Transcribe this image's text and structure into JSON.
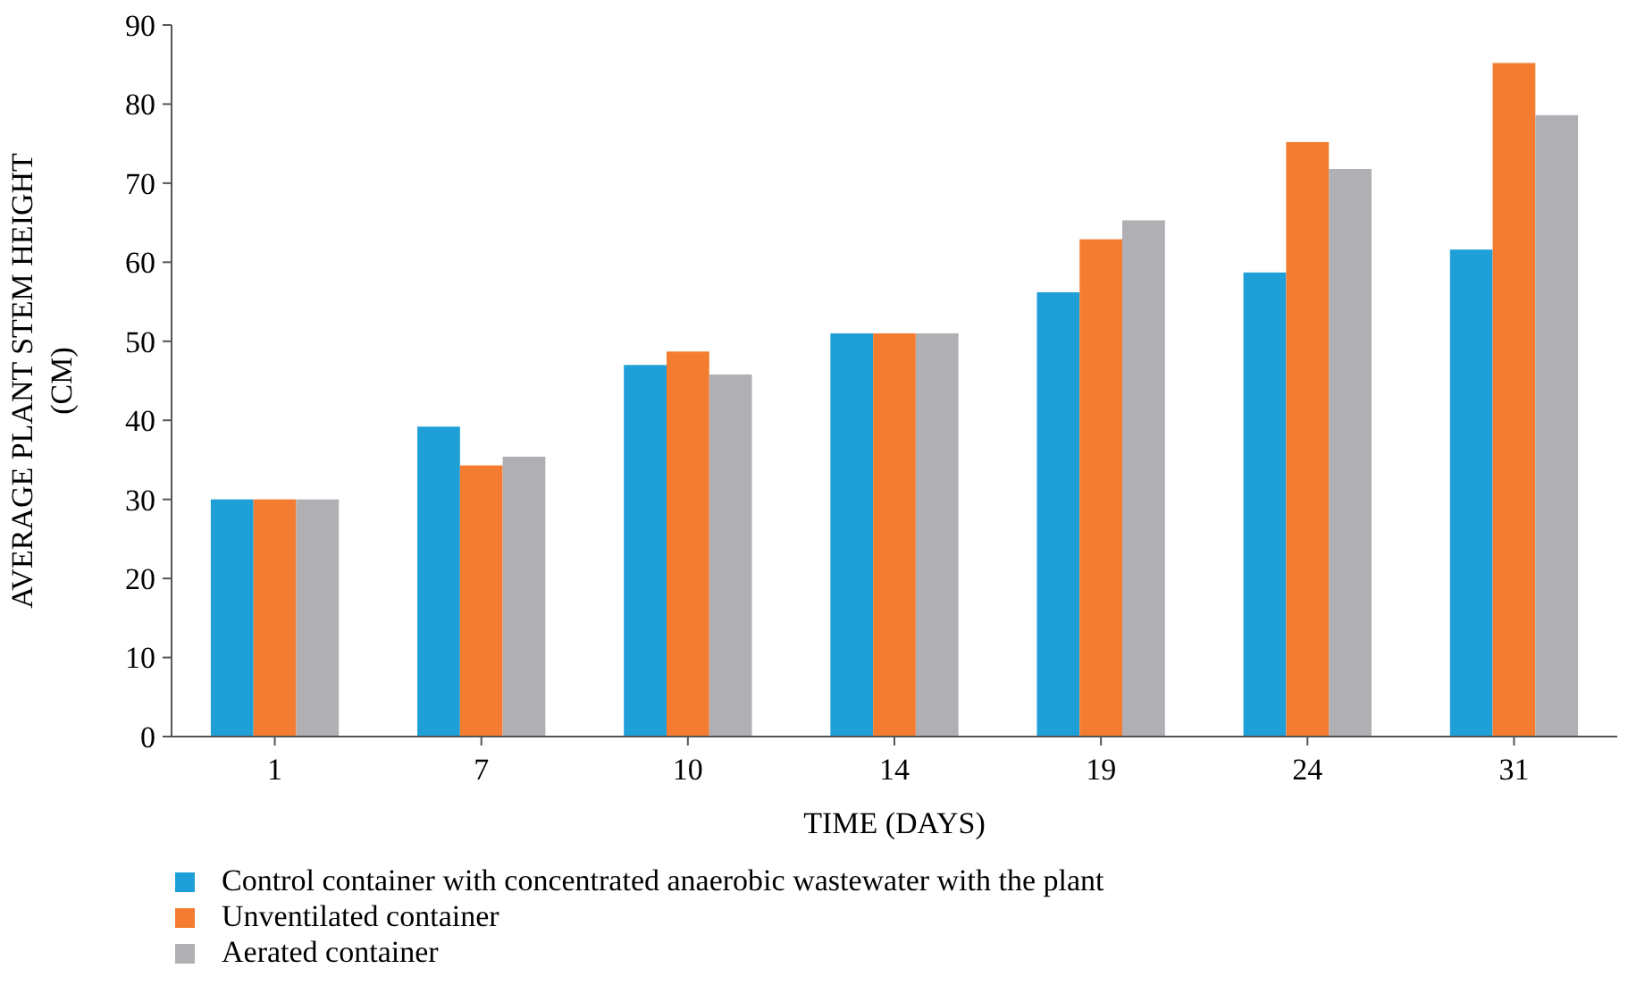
{
  "chart_data": {
    "type": "bar",
    "xlabel": "TIME (DAYS)",
    "ylabel": "AVERAGE PLANT STEM HEIGHT (CM)",
    "categories": [
      "1",
      "7",
      "10",
      "14",
      "19",
      "24",
      "31"
    ],
    "series": [
      {
        "name": "Control container with concentrated anaerobic wastewater with the plant",
        "color": "#1f9fd8",
        "values": [
          30,
          39.2,
          47,
          51,
          56.2,
          58.7,
          61.6
        ]
      },
      {
        "name": "Unventilated container",
        "color": "#f47c30",
        "values": [
          30,
          34.3,
          48.7,
          51,
          62.9,
          75.2,
          85.2
        ]
      },
      {
        "name": "Aerated container",
        "color": "#b0b0b4",
        "values": [
          30,
          35.4,
          45.8,
          51,
          65.3,
          71.8,
          78.6
        ]
      }
    ],
    "ylim": [
      0,
      90
    ],
    "yticks": [
      0,
      10,
      20,
      30,
      40,
      50,
      60,
      70,
      80,
      90
    ],
    "grid": false,
    "legend": "bottom"
  }
}
